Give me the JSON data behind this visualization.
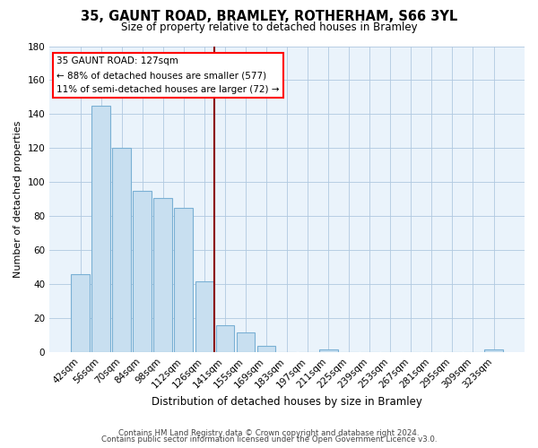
{
  "title": "35, GAUNT ROAD, BRAMLEY, ROTHERHAM, S66 3YL",
  "subtitle": "Size of property relative to detached houses in Bramley",
  "xlabel": "Distribution of detached houses by size in Bramley",
  "ylabel": "Number of detached properties",
  "bar_labels": [
    "42sqm",
    "56sqm",
    "70sqm",
    "84sqm",
    "98sqm",
    "112sqm",
    "126sqm",
    "141sqm",
    "155sqm",
    "169sqm",
    "183sqm",
    "197sqm",
    "211sqm",
    "225sqm",
    "239sqm",
    "253sqm",
    "267sqm",
    "281sqm",
    "295sqm",
    "309sqm",
    "323sqm"
  ],
  "bar_values": [
    46,
    145,
    120,
    95,
    91,
    85,
    42,
    16,
    12,
    4,
    0,
    0,
    2,
    0,
    0,
    0,
    0,
    0,
    0,
    0,
    2
  ],
  "bar_color": "#c8dff0",
  "bar_edge_color": "#7ab0d4",
  "vline_color": "#8b0000",
  "annotation_title": "35 GAUNT ROAD: 127sqm",
  "annotation_line1": "← 88% of detached houses are smaller (577)",
  "annotation_line2": "11% of semi-detached houses are larger (72) →",
  "ylim": [
    0,
    180
  ],
  "yticks": [
    0,
    20,
    40,
    60,
    80,
    100,
    120,
    140,
    160,
    180
  ],
  "footer1": "Contains HM Land Registry data © Crown copyright and database right 2024.",
  "footer2": "Contains public sector information licensed under the Open Government Licence v3.0.",
  "bg_color": "#eaf3fb"
}
